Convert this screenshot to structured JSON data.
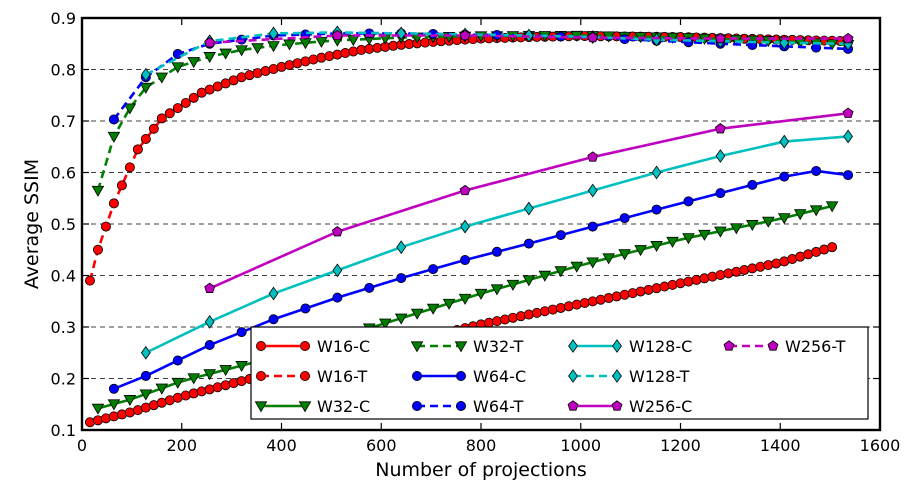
{
  "chart_data": {
    "type": "line",
    "title": "",
    "xlabel": "Number of projections",
    "ylabel": "Average SSIM",
    "xlim": [
      0,
      1600
    ],
    "ylim": [
      0.1,
      0.9
    ],
    "xticks": [
      0,
      200,
      400,
      600,
      800,
      1000,
      1200,
      1400,
      1600
    ],
    "yticks": [
      0.1,
      0.2,
      0.3,
      0.4,
      0.5,
      0.6,
      0.7,
      0.8,
      0.9
    ],
    "xtick_labels": [
      "0",
      "200",
      "400",
      "600",
      "800",
      "1000",
      "1200",
      "1400",
      "1600"
    ],
    "ytick_labels": [
      "0.1",
      "0.2",
      "0.3",
      "0.4",
      "0.5",
      "0.6",
      "0.7",
      "0.8",
      "0.9"
    ],
    "grid": "horizontal dashed",
    "legend_position": "bottom-right",
    "legend_columns": 4,
    "series": [
      {
        "name": "W16-C",
        "color": "#ff0000",
        "marker": "circle",
        "linestyle": "solid",
        "x_start": 16,
        "x_end": 1504,
        "x_step": 16,
        "key_x": [
          16,
          100,
          200,
          400,
          600,
          800,
          1000,
          1200,
          1400,
          1504
        ],
        "key_y": [
          0.115,
          0.135,
          0.165,
          0.215,
          0.26,
          0.305,
          0.345,
          0.385,
          0.425,
          0.455
        ]
      },
      {
        "name": "W16-T",
        "color": "#ff0000",
        "marker": "circle",
        "linestyle": "dashed",
        "x_start": 16,
        "x_end": 1536,
        "x_step": 16,
        "key_x": [
          16,
          32,
          64,
          112,
          160,
          240,
          320,
          400,
          480,
          560,
          640,
          720,
          800,
          900,
          1000,
          1200,
          1400,
          1536
        ],
        "key_y": [
          0.39,
          0.45,
          0.54,
          0.645,
          0.705,
          0.755,
          0.785,
          0.805,
          0.823,
          0.838,
          0.848,
          0.855,
          0.86,
          0.863,
          0.865,
          0.863,
          0.858,
          0.855
        ]
      },
      {
        "name": "W32-C",
        "color": "#007f00",
        "marker": "triangle-down",
        "linestyle": "solid",
        "x_start": 32,
        "x_end": 1504,
        "x_step": 32,
        "key_x": [
          32,
          100,
          200,
          400,
          600,
          800,
          1000,
          1200,
          1400,
          1504
        ],
        "key_y": [
          0.142,
          0.16,
          0.195,
          0.245,
          0.305,
          0.365,
          0.42,
          0.47,
          0.51,
          0.535
        ]
      },
      {
        "name": "W32-T",
        "color": "#007f00",
        "marker": "triangle-down",
        "linestyle": "dashed",
        "x_start": 32,
        "x_end": 1536,
        "x_step": 32,
        "key_x": [
          32,
          64,
          96,
          128,
          192,
          256,
          320,
          400,
          500,
          640,
          800,
          1000,
          1200,
          1400,
          1536
        ],
        "key_y": [
          0.565,
          0.67,
          0.725,
          0.765,
          0.805,
          0.825,
          0.838,
          0.848,
          0.856,
          0.862,
          0.865,
          0.866,
          0.862,
          0.855,
          0.848
        ]
      },
      {
        "name": "W64-C",
        "color": "#0000ff",
        "marker": "circle",
        "linestyle": "solid",
        "x_start": 64,
        "x_end": 1536,
        "x_step": 64,
        "key_x": [
          64,
          128,
          256,
          384,
          512,
          640,
          768,
          896,
          1024,
          1152,
          1280,
          1408,
          1472,
          1536
        ],
        "key_y": [
          0.18,
          0.205,
          0.265,
          0.315,
          0.357,
          0.395,
          0.43,
          0.462,
          0.495,
          0.528,
          0.56,
          0.592,
          0.603,
          0.595
        ]
      },
      {
        "name": "W64-T",
        "color": "#0000ff",
        "marker": "circle",
        "linestyle": "dashed",
        "x_start": 64,
        "x_end": 1536,
        "x_step": 64,
        "key_x": [
          64,
          128,
          192,
          256,
          384,
          512,
          640,
          768,
          896,
          1024,
          1152,
          1280,
          1408,
          1536
        ],
        "key_y": [
          0.703,
          0.785,
          0.83,
          0.85,
          0.866,
          0.87,
          0.87,
          0.868,
          0.866,
          0.862,
          0.856,
          0.85,
          0.845,
          0.84
        ]
      },
      {
        "name": "W128-C",
        "color": "#00bfbf",
        "marker": "diamond",
        "linestyle": "solid",
        "x_start": 128,
        "x_end": 1536,
        "x_step": 128,
        "key_x": [
          128,
          256,
          384,
          512,
          640,
          768,
          896,
          1024,
          1152,
          1280,
          1408,
          1536
        ],
        "key_y": [
          0.25,
          0.31,
          0.365,
          0.41,
          0.455,
          0.495,
          0.53,
          0.565,
          0.6,
          0.632,
          0.66,
          0.67
        ]
      },
      {
        "name": "W128-T",
        "color": "#00bfbf",
        "marker": "diamond",
        "linestyle": "dashed",
        "x_start": 128,
        "x_end": 1536,
        "x_step": 128,
        "key_x": [
          128,
          256,
          384,
          512,
          640,
          768,
          896,
          1024,
          1152,
          1280,
          1408,
          1536
        ],
        "key_y": [
          0.79,
          0.855,
          0.87,
          0.872,
          0.87,
          0.868,
          0.866,
          0.863,
          0.858,
          0.855,
          0.852,
          0.85
        ]
      },
      {
        "name": "W256-C",
        "color": "#bf00bf",
        "marker": "pentagon",
        "linestyle": "solid",
        "x_start": 256,
        "x_end": 1536,
        "x_step": 256,
        "key_x": [
          256,
          512,
          768,
          1024,
          1280,
          1536
        ],
        "key_y": [
          0.375,
          0.485,
          0.565,
          0.63,
          0.685,
          0.715
        ]
      },
      {
        "name": "W256-T",
        "color": "#bf00bf",
        "marker": "pentagon",
        "linestyle": "dashed",
        "x_start": 256,
        "x_end": 1536,
        "x_step": 256,
        "key_x": [
          256,
          512,
          768,
          1024,
          1280,
          1536
        ],
        "key_y": [
          0.852,
          0.866,
          0.866,
          0.862,
          0.86,
          0.86
        ]
      }
    ]
  }
}
